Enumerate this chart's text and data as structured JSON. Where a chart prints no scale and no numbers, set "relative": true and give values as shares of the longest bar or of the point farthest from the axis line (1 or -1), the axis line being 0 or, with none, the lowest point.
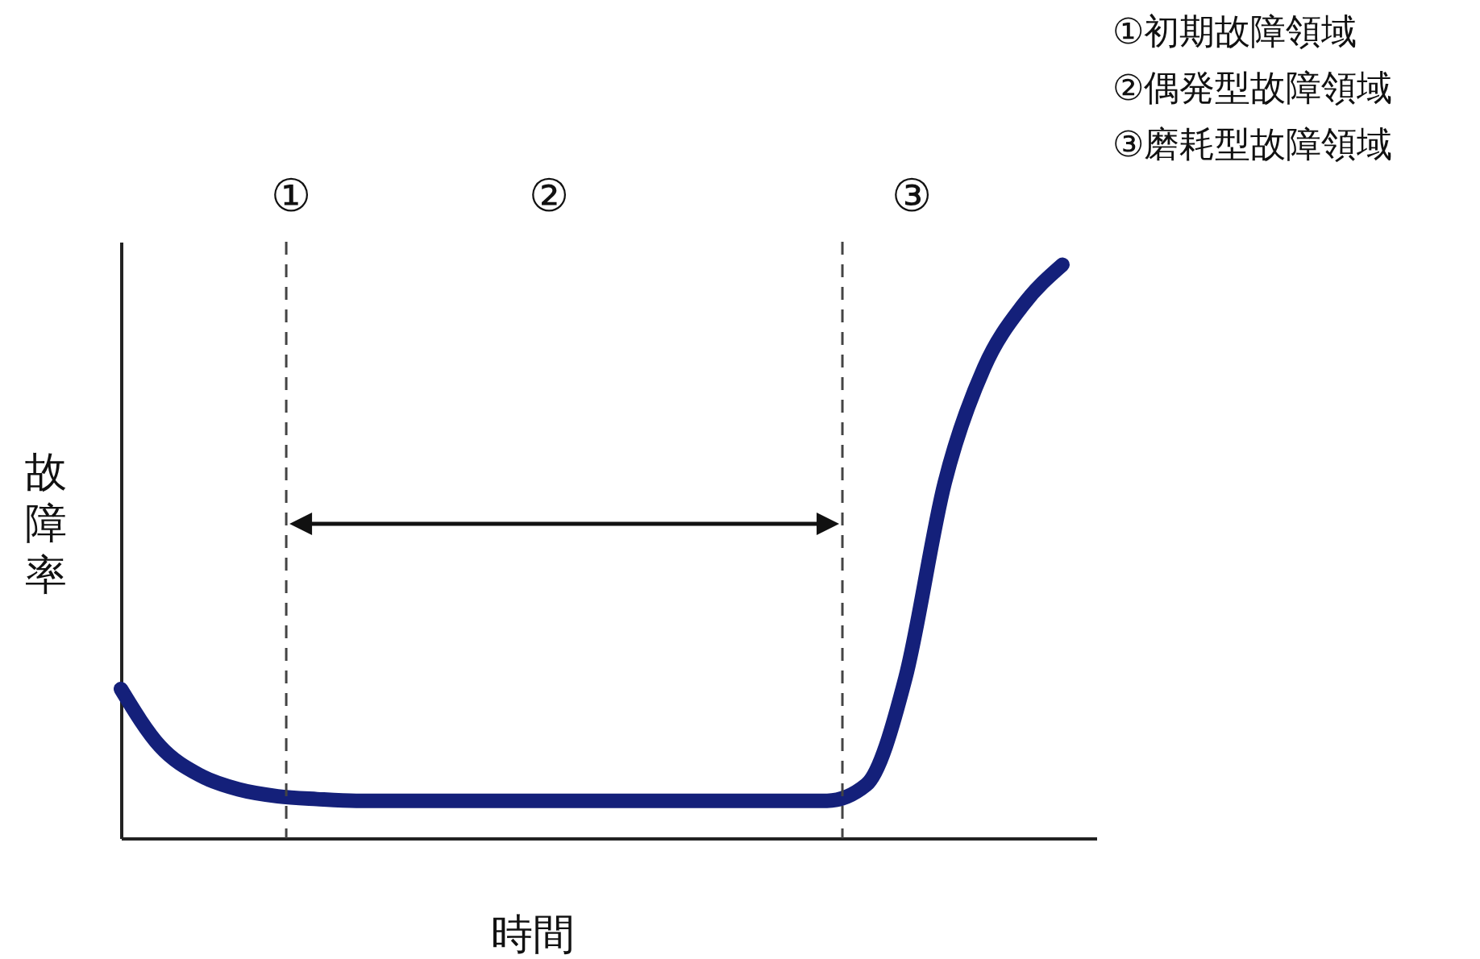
{
  "chart_data": {
    "type": "line",
    "relative": true,
    "xlabel": "時間",
    "ylabel": "故障率",
    "categories": [
      null,
      null,
      null,
      null,
      null,
      null,
      null,
      null,
      null,
      null,
      null,
      null,
      null,
      null,
      null,
      null,
      null,
      null,
      null,
      null,
      null,
      null,
      null,
      null,
      null
    ],
    "series": [
      {
        "color": "#14207a",
        "values": [
          0.26,
          0.16,
          0.11,
          0.085,
          0.073,
          0.068,
          0.065,
          0.065,
          0.065,
          0.065,
          0.065,
          0.065,
          0.065,
          0.065,
          0.065,
          0.065,
          0.065,
          0.065,
          0.065,
          0.093,
          0.28,
          0.62,
          0.82,
          0.93,
          1
        ]
      }
    ],
    "line_style": "solid",
    "annotations": [
      "①",
      "②",
      "③",
      "①初期故障領域",
      "②偶発型故障領域",
      "③磨耗型故障領域"
    ]
  }
}
